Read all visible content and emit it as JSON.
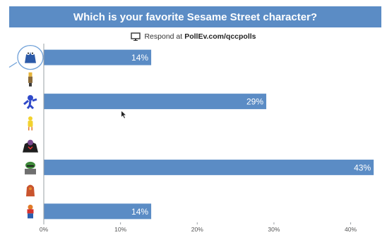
{
  "header": {
    "title": "Which is your favorite Sesame Street character?",
    "respond_prefix": "Respond at",
    "respond_url": "PollEv.com/qccpolls"
  },
  "colors": {
    "accent": "#5b8cc5",
    "bar": "#5b8cc5",
    "highlight_circle": "#6fa0d8"
  },
  "chart_data": {
    "type": "bar",
    "orientation": "horizontal",
    "title": "Which is your favorite Sesame Street character?",
    "categories_are_icons": true,
    "categories": [
      "cookie-monster-icon",
      "bert-icon",
      "grover-icon",
      "big-bird-icon",
      "count-icon",
      "oscar-icon",
      "elmo-icon",
      "ernie-icon"
    ],
    "values": [
      14,
      0,
      29,
      0,
      0,
      43,
      0,
      14
    ],
    "value_labels": [
      "14%",
      "",
      "29%",
      "",
      "",
      "43%",
      "",
      "14%"
    ],
    "xlim": [
      0,
      44
    ],
    "x_ticks": [
      0,
      10,
      20,
      30,
      40
    ],
    "x_tick_labels": [
      "0%",
      "10%",
      "20%",
      "30%",
      "40%"
    ],
    "grid": false,
    "legend": "none",
    "highlighted_category": "cookie-monster-icon"
  }
}
